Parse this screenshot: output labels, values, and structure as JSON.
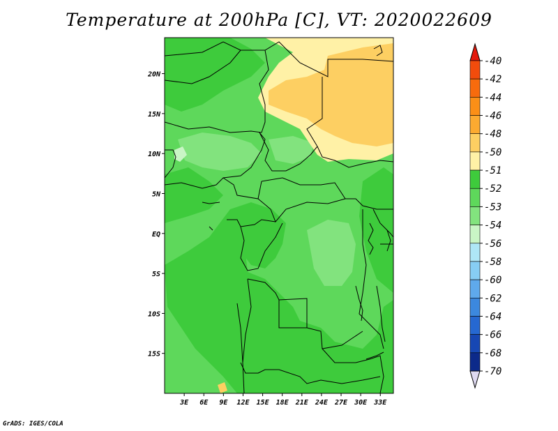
{
  "title": "Temperature at 200hPa [C], VT: 2020022609",
  "credit": "GrADS: IGES/COLA",
  "map": {
    "lon_labels": [
      "3E",
      "6E",
      "9E",
      "12E",
      "15E",
      "18E",
      "21E",
      "24E",
      "27E",
      "30E",
      "33E"
    ],
    "lat_labels": [
      "20N",
      "15N",
      "10N",
      "5N",
      "EQ",
      "5S",
      "10S",
      "15S"
    ],
    "lon_range": [
      0,
      35
    ],
    "lat_range": [
      -20,
      24.5
    ]
  },
  "colorbar": {
    "labels": [
      "-40",
      "-42",
      "-44",
      "-46",
      "-48",
      "-50",
      "-51",
      "-52",
      "-53",
      "-54",
      "-56",
      "-58",
      "-60",
      "-62",
      "-64",
      "-66",
      "-68",
      "-70"
    ],
    "colors": [
      "#e8250e",
      "#f24c0c",
      "#f76b0d",
      "#fb8f17",
      "#fcaa30",
      "#fdcf62",
      "#fff1a6",
      "#3ecb3c",
      "#5ed85b",
      "#82e37e",
      "#c9f5c5",
      "#aee6f6",
      "#87cdf4",
      "#5fa9ec",
      "#3c88de",
      "#2668d1",
      "#1747b3",
      "#0c2a8a",
      "#081575",
      "#d9d9f5"
    ],
    "top_color": "#e41a0d",
    "bottom_color": "#ded9f0"
  }
}
